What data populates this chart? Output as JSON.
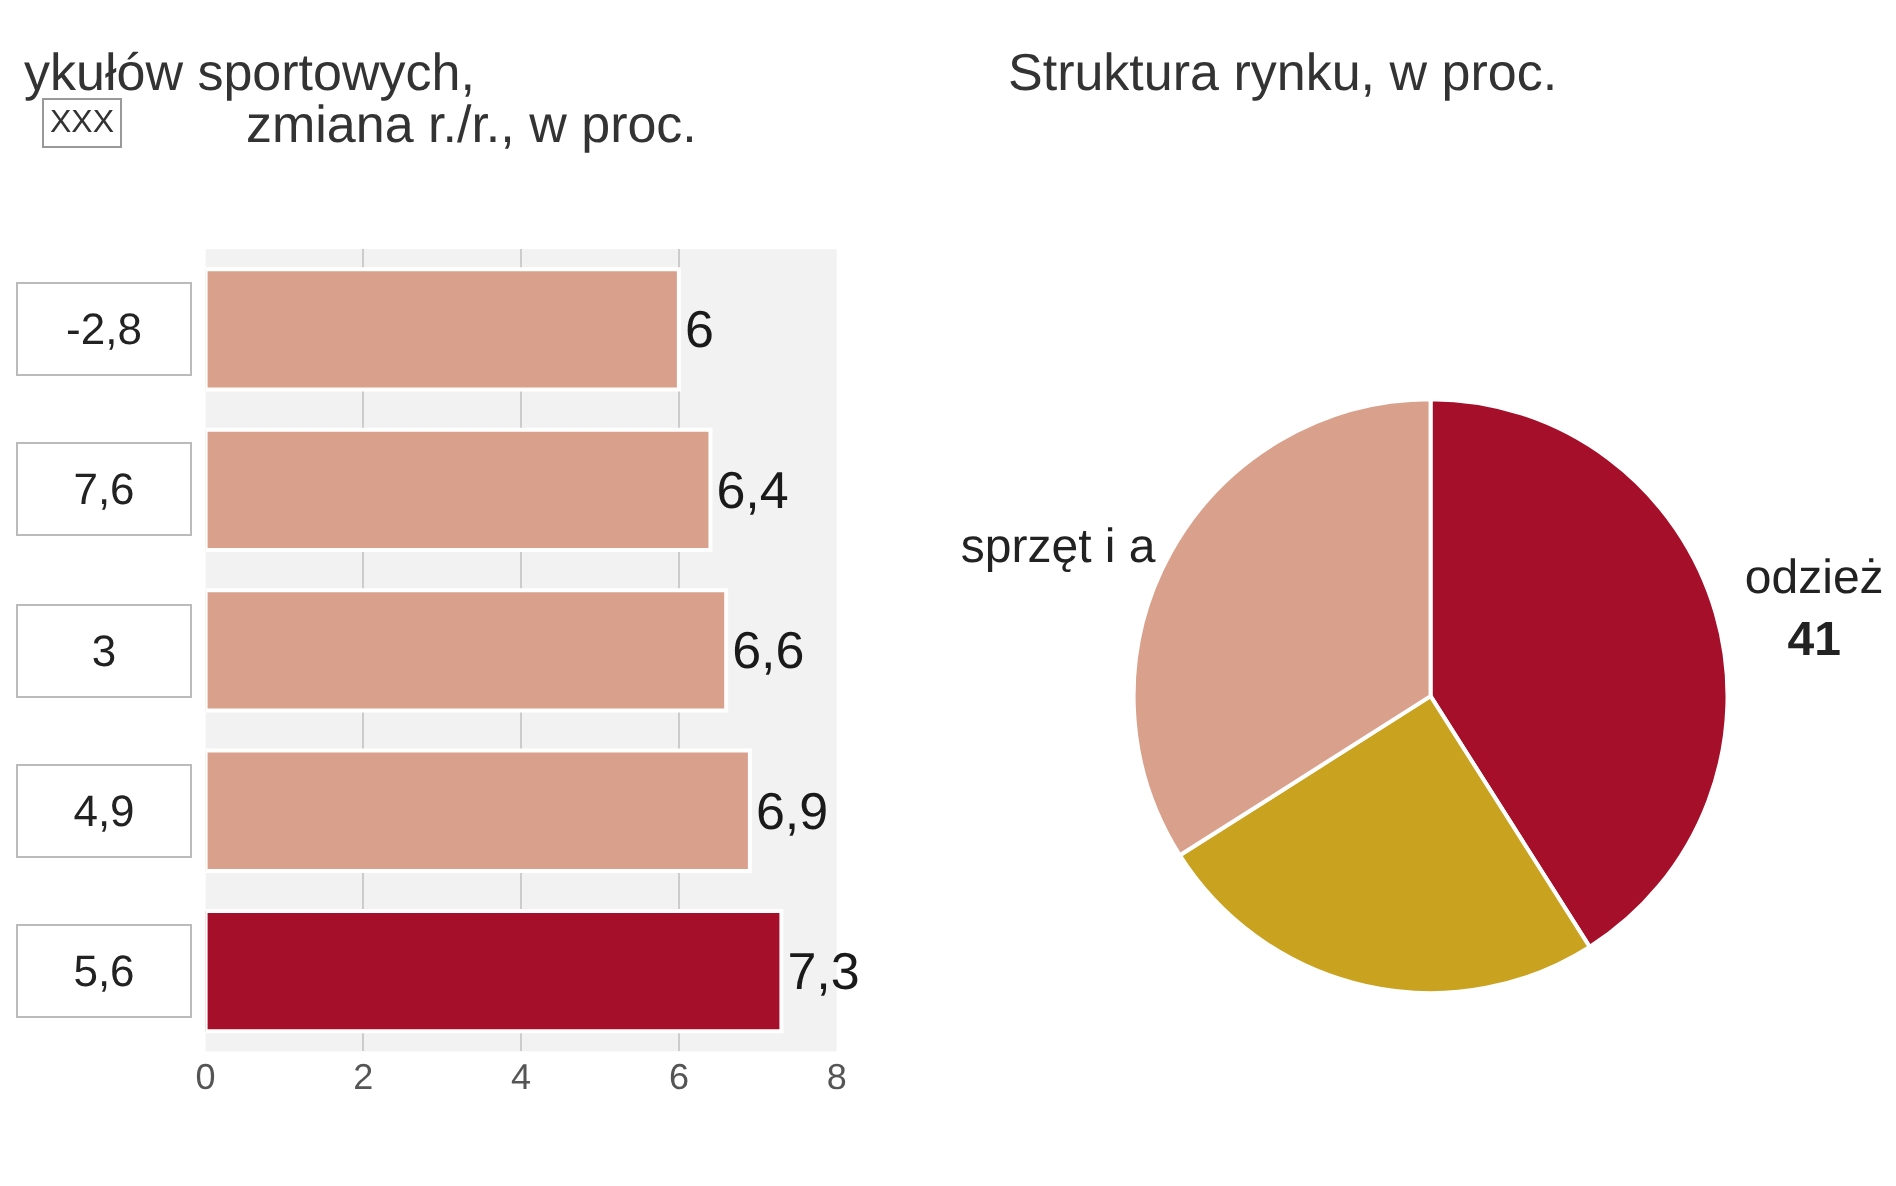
{
  "chart_data": [
    {
      "type": "bar",
      "orientation": "horizontal",
      "title": "ykułów sportowych,",
      "subtitle": "zmiana r./r., w proc.",
      "categories": [
        null,
        null,
        null,
        null,
        null
      ],
      "values": [
        6,
        6.4,
        6.6,
        6.9,
        7.3
      ],
      "colors": [
        "#d9a08c",
        "#d9a08c",
        "#d9a08c",
        "#d9a08c",
        "#a50f2a"
      ],
      "value_labels": [
        "6",
        "6,4",
        "6,6",
        "6,9",
        "7,3"
      ],
      "annotations": [
        "XXX",
        "-2,8",
        "7,6",
        "3",
        "4,9",
        "5,6"
      ],
      "xlim": [
        0,
        8
      ],
      "xticks": [
        0,
        2,
        4,
        6,
        8
      ],
      "grid": "x",
      "tick_labels": "x"
    },
    {
      "type": "pie",
      "title": "Struktura rynku, w proc.",
      "categories": [
        "odzież",
        null,
        "sprzęt i a"
      ],
      "values": [
        41,
        25,
        34
      ],
      "colors": [
        "#a50f2a",
        "#c9a220",
        "#d9a08c"
      ],
      "value_labels": [
        "41",
        null,
        null
      ]
    }
  ]
}
